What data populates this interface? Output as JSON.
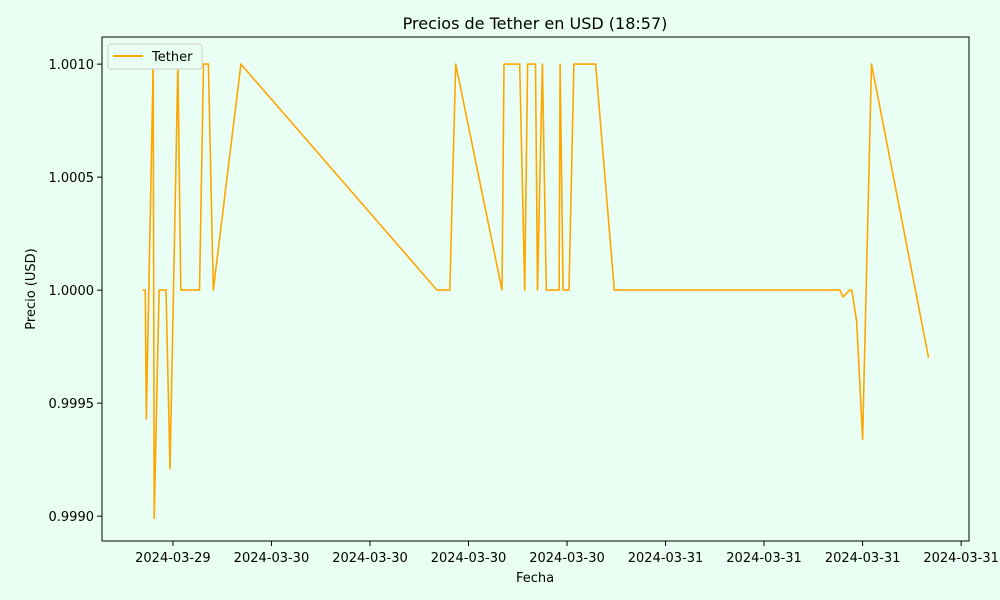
{
  "chart_data": {
    "type": "line",
    "title": "Precios de Tether en USD (18:57)",
    "xlabel": "Fecha",
    "ylabel": "Precio (USD)",
    "ylim": [
      0.99889,
      1.00112
    ],
    "xlim": [
      -0.72,
      8.08
    ],
    "grid": false,
    "legend_position": "top-left",
    "yticks": [
      {
        "value": 0.999,
        "label": "0.9990"
      },
      {
        "value": 0.9995,
        "label": "0.9995"
      },
      {
        "value": 1.0,
        "label": "1.0000"
      },
      {
        "value": 1.0005,
        "label": "1.0005"
      },
      {
        "value": 1.001,
        "label": "1.0010"
      }
    ],
    "xticks": [
      {
        "value": 0,
        "label": "2024-03-29"
      },
      {
        "value": 1,
        "label": "2024-03-30"
      },
      {
        "value": 2,
        "label": "2024-03-30"
      },
      {
        "value": 3,
        "label": "2024-03-30"
      },
      {
        "value": 4,
        "label": "2024-03-30"
      },
      {
        "value": 5,
        "label": "2024-03-31"
      },
      {
        "value": 6,
        "label": "2024-03-31"
      },
      {
        "value": 7,
        "label": "2024-03-31"
      },
      {
        "value": 8,
        "label": "2024-03-31"
      }
    ],
    "series": [
      {
        "name": "Tether",
        "color": "#ffa500",
        "points": [
          [
            -0.31,
            1.0
          ],
          [
            -0.28,
            1.0
          ],
          [
            -0.27,
            0.99943
          ],
          [
            -0.2,
            1.001
          ],
          [
            -0.19,
            0.99899
          ],
          [
            -0.14,
            1.0
          ],
          [
            -0.07,
            1.0
          ],
          [
            -0.03,
            0.99921
          ],
          [
            0.05,
            1.001
          ],
          [
            0.08,
            1.0
          ],
          [
            0.27,
            1.0
          ],
          [
            0.31,
            1.001
          ],
          [
            0.36,
            1.001
          ],
          [
            0.41,
            1.0
          ],
          [
            0.69,
            1.001
          ],
          [
            2.68,
            1.0
          ],
          [
            2.81,
            1.0
          ],
          [
            2.87,
            1.001
          ],
          [
            3.34,
            1.0
          ],
          [
            3.36,
            1.001
          ],
          [
            3.52,
            1.001
          ],
          [
            3.57,
            1.0
          ],
          [
            3.6,
            1.001
          ],
          [
            3.68,
            1.001
          ],
          [
            3.7,
            1.0
          ],
          [
            3.75,
            1.001
          ],
          [
            3.79,
            1.0
          ],
          [
            3.92,
            1.0
          ],
          [
            3.93,
            1.001
          ],
          [
            3.96,
            1.0
          ],
          [
            4.02,
            1.0
          ],
          [
            4.07,
            1.001
          ],
          [
            4.29,
            1.001
          ],
          [
            4.48,
            1.0
          ],
          [
            6.77,
            1.0
          ],
          [
            6.8,
            0.99997
          ],
          [
            6.87,
            1.0
          ],
          [
            6.89,
            1.0
          ],
          [
            6.94,
            0.99986
          ],
          [
            7.0,
            0.99934
          ],
          [
            7.09,
            1.001
          ],
          [
            7.67,
            0.9997
          ]
        ]
      }
    ]
  }
}
